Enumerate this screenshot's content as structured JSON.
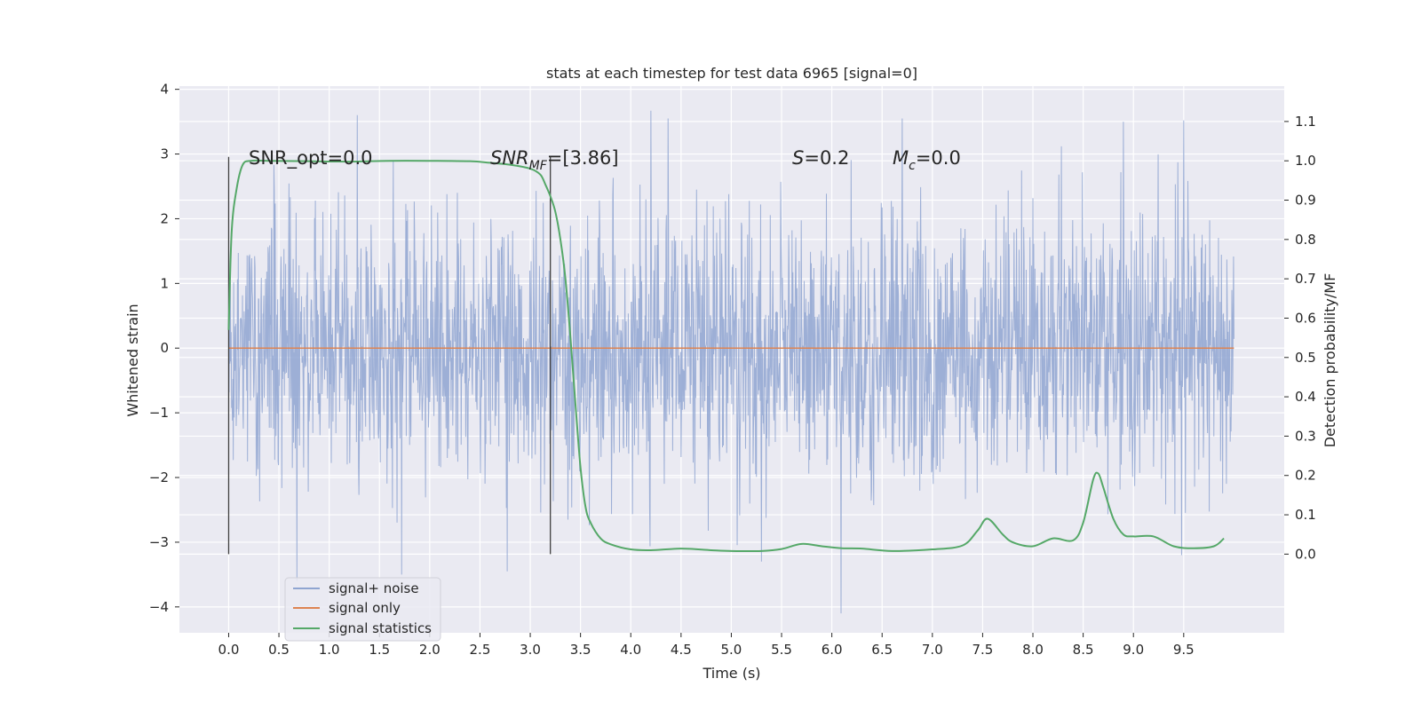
{
  "chart_data": {
    "type": "line",
    "title": "stats at each timestep for test data 6965 [signal=0]",
    "xlabel": "Time (s)",
    "ylabel_left": "Whitened strain",
    "ylabel_right": "Detection probability/MF",
    "xlim": [
      -0.49,
      10.5
    ],
    "ylim_left": [
      -4.4,
      4.05
    ],
    "ylim_right": [
      -0.2,
      1.19
    ],
    "x_ticks": [
      "0.0",
      "0.5",
      "1.0",
      "1.5",
      "2.0",
      "2.5",
      "3.0",
      "3.5",
      "4.0",
      "4.5",
      "5.0",
      "5.5",
      "6.0",
      "6.5",
      "7.0",
      "7.5",
      "8.0",
      "8.5",
      "9.0",
      "9.5"
    ],
    "y_left_ticks": [
      "4",
      "3",
      "2",
      "1",
      "0",
      "−1",
      "−2",
      "−3",
      "−4"
    ],
    "y_right_ticks": [
      "1.1",
      "1.0",
      "0.9",
      "0.8",
      "0.7",
      "0.6",
      "0.5",
      "0.4",
      "0.3",
      "0.2",
      "0.1",
      "0.0"
    ],
    "grid": true,
    "legend_position": "lower-left",
    "annotations": {
      "snr_opt": "SNR_opt=0.0",
      "snr_mf_main": "SNR",
      "snr_mf_sub": "MF",
      "snr_mf_value": "=[3.86]",
      "s_main": "S",
      "s_value": "=0.2",
      "mc_main": "M",
      "mc_sub": "c",
      "mc_value": "=0.0"
    },
    "vertical_lines_x": [
      0.0,
      3.2
    ],
    "series": [
      {
        "name": "signal+ noise",
        "color": "#8fa5d1",
        "description_kind": "noise",
        "x_range": [
          0.0,
          10.0
        ],
        "typical_amplitude": 1.0,
        "peaks": [
          {
            "x": 1.28,
            "y": 3.6
          },
          {
            "x": 4.2,
            "y": 3.67
          },
          {
            "x": 4.37,
            "y": 3.55
          },
          {
            "x": 6.7,
            "y": 3.55
          },
          {
            "x": 8.9,
            "y": 3.5
          },
          {
            "x": 9.5,
            "y": 3.52
          },
          {
            "x": 0.68,
            "y": -3.6
          },
          {
            "x": 1.72,
            "y": -3.5
          },
          {
            "x": 2.77,
            "y": -3.45
          },
          {
            "x": 6.09,
            "y": -4.1
          },
          {
            "x": 5.3,
            "y": -3.3
          },
          {
            "x": 9.48,
            "y": -3.2
          }
        ]
      },
      {
        "name": "signal only",
        "color": "#dd8452",
        "x": [
          0.0,
          10.0
        ],
        "y": [
          0.0,
          0.0
        ]
      },
      {
        "name": "signal statistics",
        "color": "#55a868",
        "axis": "right",
        "x": [
          0.0,
          0.03,
          0.08,
          0.14,
          0.22,
          0.4,
          0.8,
          1.2,
          1.6,
          2.0,
          2.4,
          2.6,
          2.8,
          3.0,
          3.1,
          3.15,
          3.2,
          3.25,
          3.3,
          3.35,
          3.4,
          3.45,
          3.5,
          3.55,
          3.6,
          3.7,
          3.8,
          4.0,
          4.2,
          4.5,
          4.8,
          5.0,
          5.3,
          5.5,
          5.7,
          5.9,
          6.1,
          6.3,
          6.6,
          7.0,
          7.3,
          7.45,
          7.55,
          7.7,
          7.8,
          8.0,
          8.2,
          8.4,
          8.5,
          8.6,
          8.65,
          8.7,
          8.8,
          8.9,
          9.0,
          9.2,
          9.4,
          9.6,
          9.8,
          9.9
        ],
        "y": [
          0.57,
          0.82,
          0.93,
          0.99,
          1.0,
          1.0,
          0.999,
          0.998,
          1.0,
          1.0,
          0.999,
          0.995,
          0.99,
          0.98,
          0.965,
          0.94,
          0.91,
          0.87,
          0.8,
          0.7,
          0.55,
          0.38,
          0.22,
          0.12,
          0.08,
          0.04,
          0.025,
          0.012,
          0.01,
          0.014,
          0.01,
          0.008,
          0.008,
          0.013,
          0.026,
          0.02,
          0.015,
          0.014,
          0.008,
          0.012,
          0.022,
          0.06,
          0.09,
          0.05,
          0.03,
          0.02,
          0.04,
          0.035,
          0.08,
          0.19,
          0.205,
          0.17,
          0.09,
          0.05,
          0.045,
          0.045,
          0.02,
          0.015,
          0.02,
          0.04
        ]
      }
    ]
  }
}
